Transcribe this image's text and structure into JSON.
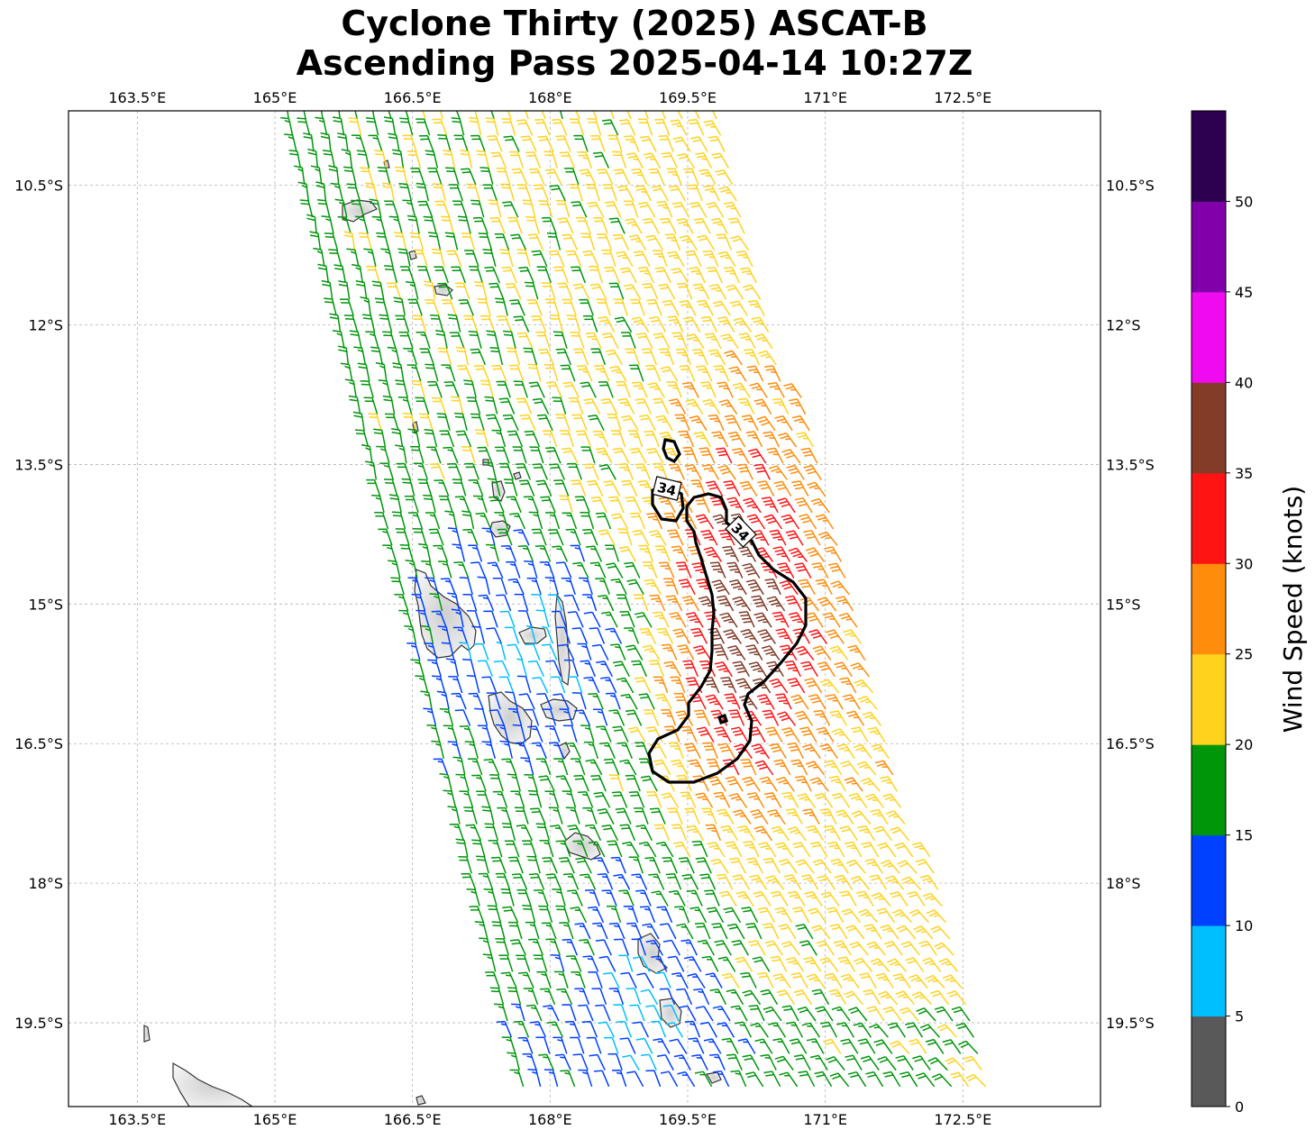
{
  "title": {
    "line1": "Cyclone Thirty (2025) ASCAT-B",
    "line2": "Ascending Pass 2025-04-14 10:27Z"
  },
  "map": {
    "lon_range": [
      162.75,
      174.0
    ],
    "lat_range": [
      -20.4,
      -9.7
    ],
    "lon_ticks": [
      {
        "value": 163.5,
        "label": "163.5°E"
      },
      {
        "value": 165.0,
        "label": "165°E"
      },
      {
        "value": 166.5,
        "label": "166.5°E"
      },
      {
        "value": 168.0,
        "label": "168°E"
      },
      {
        "value": 169.5,
        "label": "169.5°E"
      },
      {
        "value": 171.0,
        "label": "171°E"
      },
      {
        "value": 172.5,
        "label": "172.5°E"
      }
    ],
    "lat_ticks": [
      {
        "value": -10.5,
        "label": "10.5°S"
      },
      {
        "value": -12.0,
        "label": "12°S"
      },
      {
        "value": -13.5,
        "label": "13.5°S"
      },
      {
        "value": -15.0,
        "label": "15°S"
      },
      {
        "value": -16.5,
        "label": "16.5°S"
      },
      {
        "value": -18.0,
        "label": "18°S"
      },
      {
        "value": -19.5,
        "label": "19.5°S"
      }
    ],
    "gridlines": true,
    "contour_label": "34",
    "contour_color": "#000000",
    "land_fill": "#e6e6e6"
  },
  "colorbar": {
    "label": "Wind Speed (knots)",
    "ticks": [
      "0",
      "5",
      "10",
      "15",
      "20",
      "25",
      "30",
      "35",
      "40",
      "45",
      "50"
    ],
    "bins": [
      {
        "min": 0,
        "max": 5,
        "color": "#595959"
      },
      {
        "min": 5,
        "max": 10,
        "color": "#00bfff"
      },
      {
        "min": 10,
        "max": 15,
        "color": "#0040ff"
      },
      {
        "min": 15,
        "max": 20,
        "color": "#00960a"
      },
      {
        "min": 20,
        "max": 25,
        "color": "#ffd21e"
      },
      {
        "min": 25,
        "max": 30,
        "color": "#ff8c0a"
      },
      {
        "min": 30,
        "max": 35,
        "color": "#ff1414"
      },
      {
        "min": 35,
        "max": 40,
        "color": "#823c28"
      },
      {
        "min": 40,
        "max": 45,
        "color": "#f00af0"
      },
      {
        "min": 45,
        "max": 50,
        "color": "#8200aa"
      },
      {
        "min": 50,
        "max": 55,
        "color": "#2d0050"
      }
    ]
  }
}
